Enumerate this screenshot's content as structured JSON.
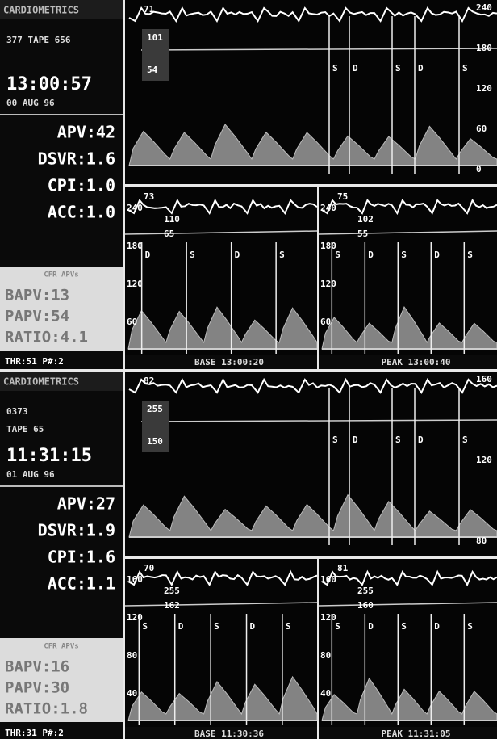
{
  "panels": [
    {
      "sidebar": {
        "brand": "CARDIOMETRICS",
        "tape": [
          "377 TAPE 656"
        ],
        "time": "13:00:57",
        "date": "00 AUG 96",
        "indices": [
          "APV:42",
          "DSVR:1.6",
          "CPI:1.0",
          "ACC:1.0"
        ],
        "cfr_title": "CFR APVs",
        "cfr": [
          "BAPV:13",
          "PAPV:54",
          "RATIO:4.1"
        ],
        "footer": "THR:51 P#:2"
      },
      "trend": {
        "heart_rate": "71",
        "pressure": [
          "101",
          "54"
        ],
        "scale": [
          "240",
          "180",
          "120",
          "60",
          "0"
        ],
        "markers": [
          "S",
          "D",
          "S",
          "D",
          "S"
        ]
      },
      "base": {
        "heart_rate": "73",
        "pressure": [
          "110",
          "65"
        ],
        "scale": [
          "240",
          "180",
          "120",
          "60"
        ],
        "markers": [
          "D",
          "S",
          "D",
          "S"
        ],
        "caption": "BASE 13:00:20"
      },
      "peak": {
        "heart_rate": "75",
        "pressure": [
          "102",
          "55"
        ],
        "scale": [
          "240",
          "180",
          "120",
          "60"
        ],
        "markers": [
          "S",
          "D",
          "S",
          "D",
          "S"
        ],
        "caption": "PEAK 13:00:40"
      }
    },
    {
      "sidebar": {
        "brand": "CARDIOMETRICS",
        "tape": [
          "0373",
          "TAPE 65"
        ],
        "time": "11:31:15",
        "date": "01 AUG 96",
        "indices": [
          "APV:27",
          "DSVR:1.9",
          "CPI:1.6",
          "ACC:1.1"
        ],
        "cfr_title": "CFR APVs",
        "cfr": [
          "BAPV:16",
          "PAPV:30",
          "RATIO:1.8"
        ],
        "footer": "THR:31 P#:2"
      },
      "trend": {
        "heart_rate": "82",
        "pressure": [
          "255",
          "150"
        ],
        "scale": [
          "160",
          "120",
          "80"
        ],
        "markers": [
          "S",
          "D",
          "S",
          "D",
          "S"
        ]
      },
      "base": {
        "heart_rate": "70",
        "pressure": [
          "255",
          "162"
        ],
        "scale": [
          "160",
          "120",
          "80",
          "40"
        ],
        "markers": [
          "S",
          "D",
          "S",
          "D",
          "S"
        ],
        "caption": "BASE 11:30:36"
      },
      "peak": {
        "heart_rate": "81",
        "pressure": [
          "255",
          "160"
        ],
        "scale": [
          "160",
          "120",
          "80",
          "40"
        ],
        "markers": [
          "S",
          "D",
          "S",
          "D",
          "S"
        ],
        "caption": "PEAK 11:31:05"
      }
    }
  ]
}
